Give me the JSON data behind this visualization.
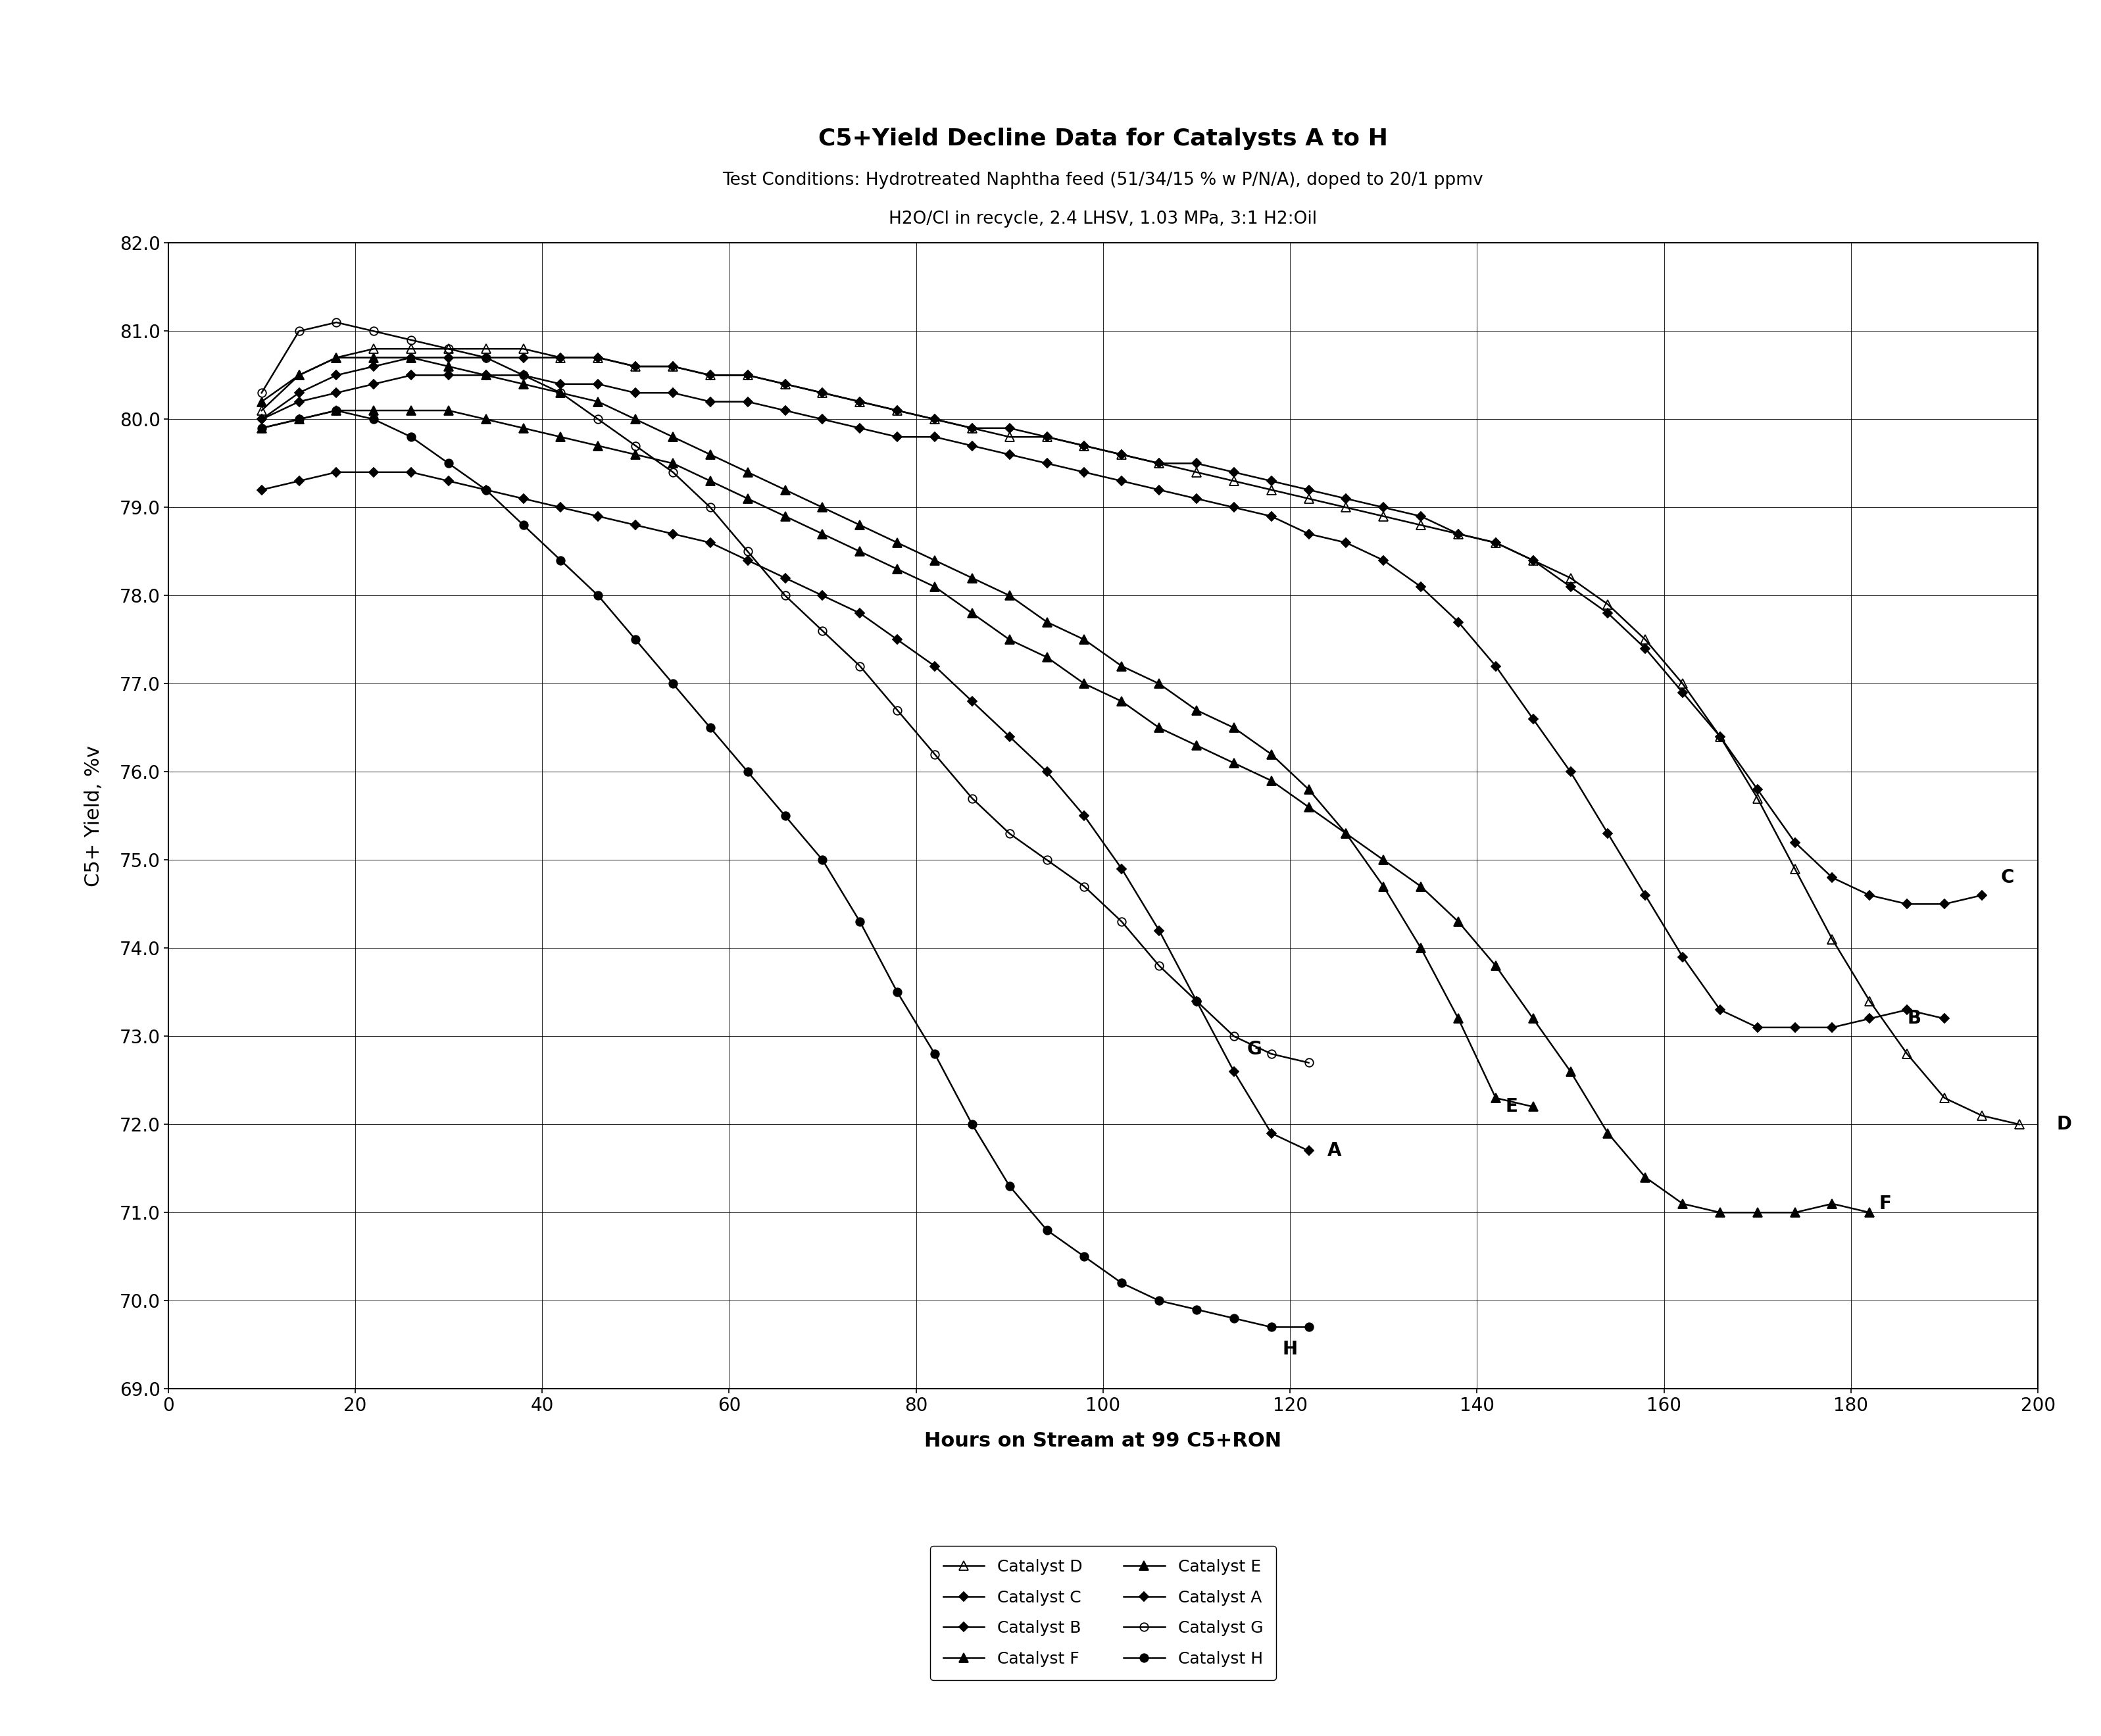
{
  "title": "C5+Yield Decline Data for Catalysts A to H",
  "subtitle1": "Test Conditions: Hydrotreated Naphtha feed (51/34/15 % w P/N/A), doped to 20/1 ppmv",
  "subtitle2": "H2O/Cl in recycle, 2.4 LHSV, 1.03 MPa, 3:1 H2:Oil",
  "xlabel": "Hours on Stream at 99 C5+RON",
  "ylabel": "C5+ Yield, %v",
  "xlim": [
    0,
    200
  ],
  "ylim": [
    69.0,
    82.0
  ],
  "xticks": [
    0,
    20,
    40,
    60,
    80,
    100,
    120,
    140,
    160,
    180,
    200
  ],
  "yticks": [
    69.0,
    70.0,
    71.0,
    72.0,
    73.0,
    74.0,
    75.0,
    76.0,
    77.0,
    78.0,
    79.0,
    80.0,
    81.0,
    82.0
  ],
  "catalysts": {
    "D": {
      "x": [
        10,
        14,
        18,
        22,
        26,
        30,
        34,
        38,
        42,
        46,
        50,
        54,
        58,
        62,
        66,
        70,
        74,
        78,
        82,
        86,
        90,
        94,
        98,
        102,
        106,
        110,
        114,
        118,
        122,
        126,
        130,
        134,
        138,
        142,
        146,
        150,
        154,
        158,
        162,
        166,
        170,
        174,
        178,
        182,
        186,
        190,
        194,
        198
      ],
      "y": [
        80.1,
        80.5,
        80.7,
        80.8,
        80.8,
        80.8,
        80.8,
        80.8,
        80.7,
        80.7,
        80.6,
        80.6,
        80.5,
        80.5,
        80.4,
        80.3,
        80.2,
        80.1,
        80.0,
        79.9,
        79.8,
        79.8,
        79.7,
        79.6,
        79.5,
        79.4,
        79.3,
        79.2,
        79.1,
        79.0,
        78.9,
        78.8,
        78.7,
        78.6,
        78.4,
        78.2,
        77.9,
        77.5,
        77.0,
        76.4,
        75.7,
        74.9,
        74.1,
        73.4,
        72.8,
        72.3,
        72.1,
        72.0
      ],
      "marker": "^",
      "fillstyle": "none",
      "label": "Catalyst D",
      "markersize": 8,
      "end_label": "D",
      "end_x": 200,
      "end_y": 72.0
    },
    "C": {
      "x": [
        10,
        14,
        18,
        22,
        26,
        30,
        34,
        38,
        42,
        46,
        50,
        54,
        58,
        62,
        66,
        70,
        74,
        78,
        82,
        86,
        90,
        94,
        98,
        102,
        106,
        110,
        114,
        118,
        122,
        126,
        130,
        134,
        138,
        142,
        146,
        150,
        154,
        158,
        162,
        166,
        170,
        174,
        178,
        182,
        186,
        190,
        194
      ],
      "y": [
        80.0,
        80.3,
        80.5,
        80.6,
        80.7,
        80.7,
        80.7,
        80.7,
        80.7,
        80.7,
        80.6,
        80.6,
        80.5,
        80.5,
        80.4,
        80.3,
        80.2,
        80.1,
        80.0,
        79.9,
        79.9,
        79.8,
        79.7,
        79.6,
        79.5,
        79.5,
        79.4,
        79.3,
        79.2,
        79.1,
        79.0,
        78.9,
        78.7,
        78.6,
        78.4,
        78.1,
        77.8,
        77.4,
        76.9,
        76.4,
        75.8,
        75.2,
        74.8,
        74.6,
        74.5,
        74.5,
        74.6
      ],
      "marker": "D",
      "fillstyle": "full",
      "label": "Catalyst C",
      "markersize": 6,
      "end_label": "C",
      "end_x": 194,
      "end_y": 74.7
    },
    "B": {
      "x": [
        10,
        14,
        18,
        22,
        26,
        30,
        34,
        38,
        42,
        46,
        50,
        54,
        58,
        62,
        66,
        70,
        74,
        78,
        82,
        86,
        90,
        94,
        98,
        102,
        106,
        110,
        114,
        118,
        122,
        126,
        130,
        134,
        138,
        142,
        146,
        150,
        154,
        158,
        162,
        166,
        170,
        174,
        178,
        182,
        186,
        190
      ],
      "y": [
        80.0,
        80.2,
        80.3,
        80.4,
        80.5,
        80.5,
        80.5,
        80.5,
        80.4,
        80.4,
        80.3,
        80.3,
        80.2,
        80.2,
        80.1,
        80.0,
        79.9,
        79.8,
        79.8,
        79.7,
        79.6,
        79.5,
        79.4,
        79.3,
        79.2,
        79.1,
        79.0,
        78.9,
        78.7,
        78.6,
        78.4,
        78.1,
        77.7,
        77.2,
        76.6,
        76.0,
        75.3,
        74.6,
        73.9,
        73.3,
        73.1,
        73.1,
        73.1,
        73.2,
        73.3,
        73.2
      ],
      "marker": "D",
      "fillstyle": "full",
      "label": "Catalyst B",
      "markersize": 6,
      "end_label": "B",
      "end_x": 184,
      "end_y": 73.2
    },
    "E": {
      "x": [
        10,
        14,
        18,
        22,
        26,
        30,
        34,
        38,
        42,
        46,
        50,
        54,
        58,
        62,
        66,
        70,
        74,
        78,
        82,
        86,
        90,
        94,
        98,
        102,
        106,
        110,
        114,
        118,
        122,
        126,
        130,
        134,
        138,
        142,
        146
      ],
      "y": [
        80.2,
        80.5,
        80.7,
        80.7,
        80.7,
        80.6,
        80.5,
        80.4,
        80.3,
        80.2,
        80.0,
        79.8,
        79.6,
        79.4,
        79.2,
        79.0,
        78.8,
        78.6,
        78.4,
        78.2,
        78.0,
        77.7,
        77.5,
        77.2,
        77.0,
        76.7,
        76.5,
        76.2,
        75.8,
        75.3,
        74.7,
        74.0,
        73.2,
        72.3,
        72.2
      ],
      "marker": "^",
      "fillstyle": "full",
      "label": "Catalyst E",
      "markersize": 8,
      "end_label": "E",
      "end_x": 141,
      "end_y": 72.2
    },
    "F": {
      "x": [
        10,
        14,
        18,
        22,
        26,
        30,
        34,
        38,
        42,
        46,
        50,
        54,
        58,
        62,
        66,
        70,
        74,
        78,
        82,
        86,
        90,
        94,
        98,
        102,
        106,
        110,
        114,
        118,
        122,
        126,
        130,
        134,
        138,
        142,
        146,
        150,
        154,
        158,
        162,
        166,
        170,
        174,
        178,
        182
      ],
      "y": [
        79.9,
        80.0,
        80.1,
        80.1,
        80.1,
        80.1,
        80.0,
        79.9,
        79.8,
        79.7,
        79.6,
        79.5,
        79.3,
        79.1,
        78.9,
        78.7,
        78.5,
        78.3,
        78.1,
        77.8,
        77.5,
        77.3,
        77.0,
        76.8,
        76.5,
        76.3,
        76.1,
        75.9,
        75.6,
        75.3,
        75.0,
        74.7,
        74.3,
        73.8,
        73.2,
        72.6,
        71.9,
        71.4,
        71.1,
        71.0,
        71.0,
        71.0,
        71.1,
        71.0
      ],
      "marker": "^",
      "fillstyle": "full",
      "label": "Catalyst F",
      "markersize": 8,
      "end_label": "F",
      "end_x": 181,
      "end_y": 71.1
    },
    "A": {
      "x": [
        10,
        14,
        18,
        22,
        26,
        30,
        34,
        38,
        42,
        46,
        50,
        54,
        58,
        62,
        66,
        70,
        74,
        78,
        82,
        86,
        90,
        94,
        98,
        102,
        106,
        110,
        114,
        118,
        122
      ],
      "y": [
        79.2,
        79.3,
        79.4,
        79.4,
        79.4,
        79.3,
        79.2,
        79.1,
        79.0,
        78.9,
        78.8,
        78.7,
        78.6,
        78.4,
        78.2,
        78.0,
        77.8,
        77.5,
        77.2,
        76.8,
        76.4,
        76.0,
        75.5,
        74.9,
        74.2,
        73.4,
        72.6,
        71.9,
        71.7
      ],
      "marker": "D",
      "fillstyle": "full",
      "label": "Catalyst A",
      "markersize": 6,
      "end_label": "A",
      "end_x": 122,
      "end_y": 71.7
    },
    "G": {
      "x": [
        10,
        14,
        18,
        22,
        26,
        30,
        34,
        38,
        42,
        46,
        50,
        54,
        58,
        62,
        66,
        70,
        74,
        78,
        82,
        86,
        90,
        94,
        98,
        102,
        106,
        110,
        114,
        118,
        122
      ],
      "y": [
        80.3,
        81.0,
        81.1,
        81.0,
        80.9,
        80.8,
        80.7,
        80.5,
        80.3,
        80.0,
        79.7,
        79.4,
        79.0,
        78.5,
        78.0,
        77.6,
        77.2,
        76.7,
        76.2,
        75.7,
        75.3,
        75.0,
        74.7,
        74.3,
        73.8,
        73.4,
        73.0,
        72.8,
        72.7
      ],
      "marker": "o",
      "fillstyle": "none",
      "label": "Catalyst G",
      "markersize": 8,
      "end_label": "G",
      "end_x": 119,
      "end_y": 72.7
    },
    "H": {
      "x": [
        10,
        14,
        18,
        22,
        26,
        30,
        34,
        38,
        42,
        46,
        50,
        54,
        58,
        62,
        66,
        70,
        74,
        78,
        82,
        86,
        90,
        94,
        98,
        102,
        106,
        110,
        114,
        118,
        122
      ],
      "y": [
        79.9,
        80.0,
        80.1,
        80.0,
        79.8,
        79.5,
        79.2,
        78.8,
        78.4,
        78.0,
        77.5,
        77.0,
        76.5,
        76.0,
        75.5,
        75.0,
        74.3,
        73.5,
        72.8,
        72.0,
        71.3,
        70.8,
        70.5,
        70.2,
        70.0,
        69.9,
        69.8,
        69.7,
        69.7
      ],
      "marker": "o",
      "fillstyle": "full",
      "label": "Catalyst H",
      "markersize": 8,
      "end_label": "H",
      "end_x": 120,
      "end_y": 69.8
    }
  },
  "background_color": "#ffffff",
  "title_fontsize": 26,
  "subtitle_fontsize": 19,
  "label_fontsize": 22,
  "tick_fontsize": 20,
  "legend_fontsize": 18,
  "annotation_fontsize": 20
}
